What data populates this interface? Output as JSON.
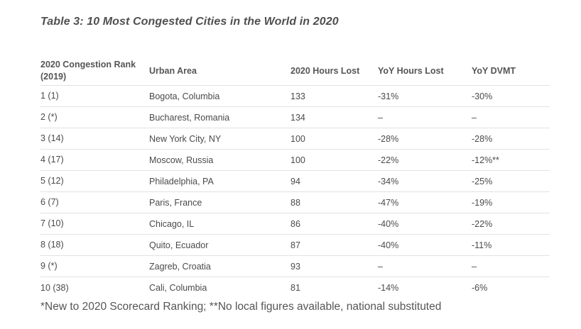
{
  "title": "Table 3: 10 Most Congested Cities in the World in 2020",
  "columns": [
    "2020 Congestion Rank (2019)",
    "Urban Area",
    "2020 Hours Lost",
    "YoY Hours Lost",
    "YoY DVMT"
  ],
  "rows": [
    [
      "1 (1)",
      "Bogota, Columbia",
      "133",
      "-31%",
      "-30%"
    ],
    [
      "2 (*)",
      "Bucharest, Romania",
      "134",
      "–",
      "–"
    ],
    [
      "3 (14)",
      "New York City, NY",
      "100",
      "-28%",
      "-28%"
    ],
    [
      "4 (17)",
      "Moscow, Russia",
      "100",
      "-22%",
      "-12%**"
    ],
    [
      "5 (12)",
      "Philadelphia, PA",
      "94",
      "-34%",
      "-25%"
    ],
    [
      "6 (7)",
      "Paris, France",
      "88",
      "-47%",
      "-19%"
    ],
    [
      "7 (10)",
      "Chicago, IL",
      "86",
      "-40%",
      "-22%"
    ],
    [
      "8 (18)",
      "Quito, Ecuador",
      "87",
      "-40%",
      "-11%"
    ],
    [
      "9 (*)",
      "Zagreb, Croatia",
      "93",
      "–",
      "–"
    ],
    [
      "10 (38)",
      "Cali, Columbia",
      "81",
      "-14%",
      "-6%"
    ]
  ],
  "footnote": "*New to 2020 Scorecard Ranking; **No local figures available, national substituted"
}
